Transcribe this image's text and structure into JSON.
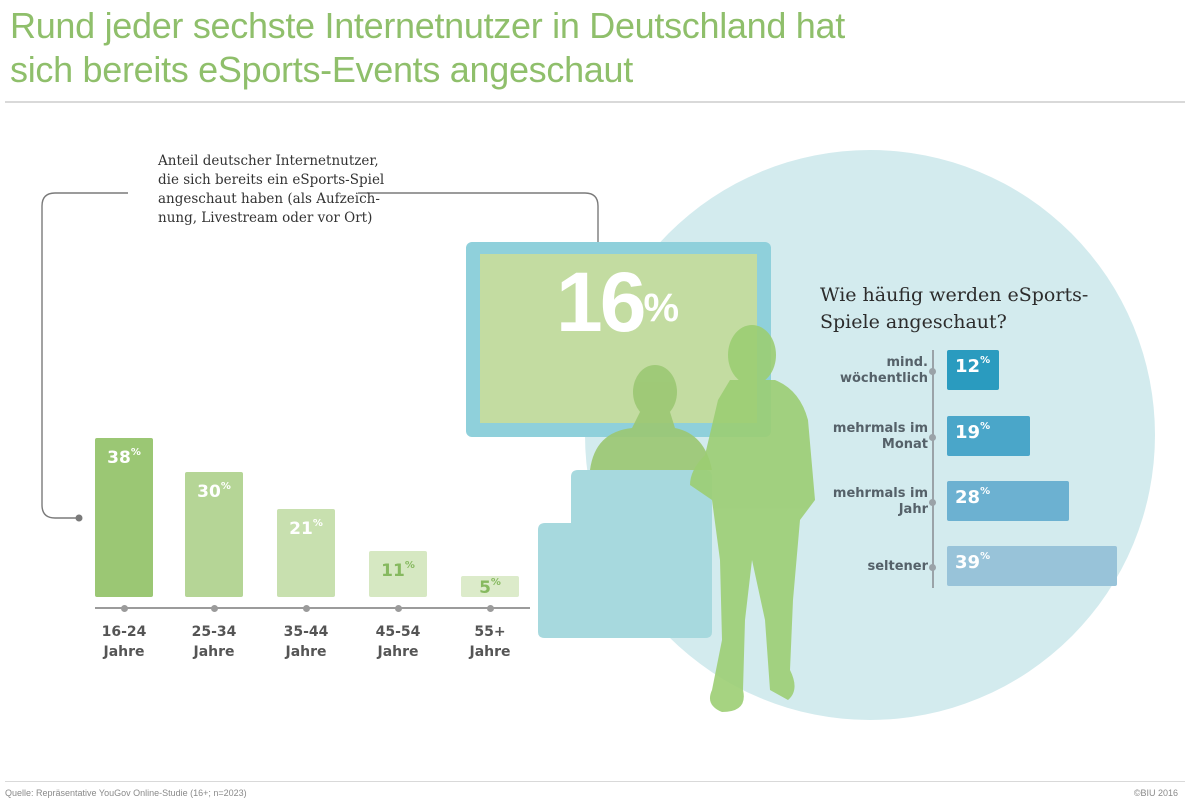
{
  "header": {
    "title_line1": "Rund jeder sechste Internetnutzer in Deutschland hat",
    "title_line2": "sich bereits eSports-Events angeschaut"
  },
  "left_chart": {
    "caption": "Anteil deutscher Internetnutzer, die sich bereits ein eSports-Spiel angeschaut haben (als Aufzeich-nung, Livestream oder vor Ort)"
  },
  "highlight": {
    "value": "16",
    "unit": "%"
  },
  "right_chart": {
    "title": "Wie häufig werden eSports-Spiele angeschaut?"
  },
  "footer": {
    "source": "Quelle: Repräsentative YouGov Online-Studie (16+; n=2023)",
    "copyright": "©BIU 2016"
  },
  "colors": {
    "title_green": "#8fbf6b",
    "age_bars": [
      "#9bc774",
      "#b5d596",
      "#c8e0af",
      "#d6e8c2",
      "#dcebca"
    ],
    "age_value_text": [
      "#ffffff",
      "#ffffff",
      "#ffffff",
      "#86b95f",
      "#86b95f"
    ],
    "freq_bars": [
      "#2a9bbf",
      "#4aa6c9",
      "#6cb1d1",
      "#98c3d9"
    ],
    "circle": "#d3ebee",
    "monitor_frame": "#8fd0db",
    "monitor_screen": "#c3dca1"
  },
  "chart_data": [
    {
      "type": "bar",
      "title": "Anteil deutscher Internetnutzer, die sich bereits ein eSports-Spiel angeschaut haben (als Aufzeichnung, Livestream oder vor Ort)",
      "categories": [
        "16-24 Jahre",
        "25-34 Jahre",
        "35-44 Jahre",
        "45-54 Jahre",
        "55+ Jahre"
      ],
      "category_lines": [
        [
          "16-24",
          "Jahre"
        ],
        [
          "25-34",
          "Jahre"
        ],
        [
          "35-44",
          "Jahre"
        ],
        [
          "45-54",
          "Jahre"
        ],
        [
          "55+",
          "Jahre"
        ]
      ],
      "values": [
        38,
        30,
        21,
        11,
        5
      ],
      "unit": "%",
      "xlabel": "",
      "ylabel": "",
      "ylim": [
        0,
        40
      ],
      "grid": false,
      "legend": "none"
    },
    {
      "type": "bar",
      "orientation": "horizontal",
      "title": "Wie häufig werden eSports-Spiele angeschaut?",
      "categories": [
        "mind.\nwöchentlich",
        "mehrmals im\nMonat",
        "mehrmals im\nJahr",
        "seltener"
      ],
      "values": [
        12,
        19,
        28,
        39
      ],
      "unit": "%",
      "xlim": [
        0,
        40
      ],
      "grid": false,
      "legend": "none"
    },
    {
      "type": "table",
      "title": "Gesamtanteil",
      "values": [
        16
      ],
      "unit": "%"
    }
  ]
}
